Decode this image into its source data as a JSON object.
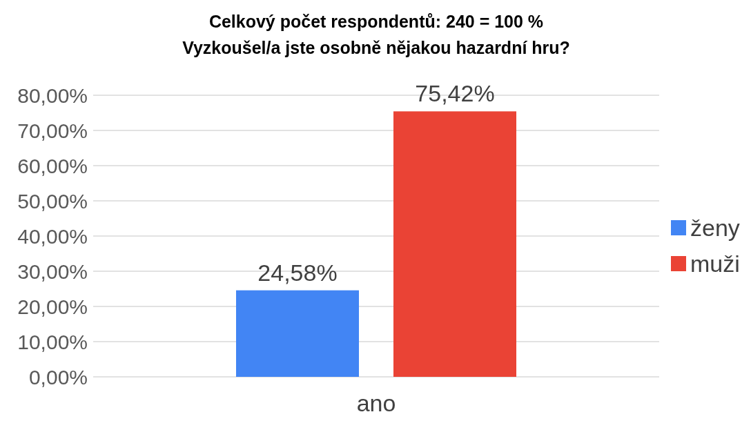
{
  "chart_data": {
    "type": "bar",
    "title": "Celkový počet respondentů: 240 = 100 %\nVyzkoušel/a jste osobně nějakou hazardní hru?",
    "categories": [
      "ano"
    ],
    "series": [
      {
        "name": "ženy",
        "color": "#4285f4",
        "values": [
          24.58
        ],
        "value_labels": [
          "24,58%"
        ]
      },
      {
        "name": "muži",
        "color": "#ea4335",
        "values": [
          75.42
        ],
        "value_labels": [
          "75,42%"
        ]
      }
    ],
    "ylim": [
      0,
      80
    ],
    "yticks": [
      {
        "value": 0,
        "label": "0,00%"
      },
      {
        "value": 10,
        "label": "10,00%"
      },
      {
        "value": 20,
        "label": "20,00%"
      },
      {
        "value": 30,
        "label": "30,00%"
      },
      {
        "value": 40,
        "label": "40,00%"
      },
      {
        "value": 50,
        "label": "50,00%"
      },
      {
        "value": 60,
        "label": "60,00%"
      },
      {
        "value": 70,
        "label": "70,00%"
      },
      {
        "value": 80,
        "label": "80,00%"
      }
    ],
    "grid": "y",
    "legend": "right"
  }
}
